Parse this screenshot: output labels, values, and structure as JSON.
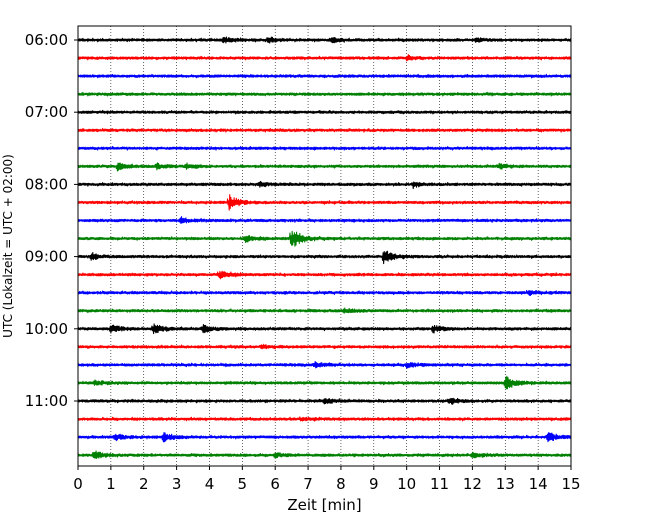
{
  "chart_data": {
    "type": "line",
    "chart_kind": "helicorder",
    "xlabel": "Zeit  [min]",
    "ylabel": "UTC (Lokalzeit = UTC + 02:00)",
    "xlim": [
      0,
      15
    ],
    "x_ticks": [
      "0",
      "1",
      "2",
      "3",
      "4",
      "5",
      "6",
      "7",
      "8",
      "9",
      "10",
      "11",
      "12",
      "13",
      "14",
      "15"
    ],
    "y_tick_labels": [
      "06:00",
      "07:00",
      "08:00",
      "09:00",
      "10:00",
      "11:00"
    ],
    "grid_x": "dotted-vertical",
    "trace_colors": [
      "#000000",
      "#ff0000",
      "#0000ff",
      "#008000"
    ],
    "traces": [
      {
        "start": "06:00",
        "color": "#000000",
        "events": [
          {
            "t": 4.4,
            "amp": 0.8
          },
          {
            "t": 5.8,
            "amp": 0.7
          },
          {
            "t": 7.7,
            "amp": 0.6
          },
          {
            "t": 12.1,
            "amp": 0.5
          }
        ]
      },
      {
        "start": "06:15",
        "color": "#ff0000",
        "events": [
          {
            "t": 10.0,
            "amp": 0.5
          }
        ]
      },
      {
        "start": "06:30",
        "color": "#0000ff",
        "events": []
      },
      {
        "start": "06:45",
        "color": "#008000",
        "events": []
      },
      {
        "start": "07:00",
        "color": "#000000",
        "events": []
      },
      {
        "start": "07:15",
        "color": "#ff0000",
        "events": []
      },
      {
        "start": "07:30",
        "color": "#0000ff",
        "events": []
      },
      {
        "start": "07:45",
        "color": "#008000",
        "events": [
          {
            "t": 1.2,
            "amp": 0.8
          },
          {
            "t": 2.4,
            "amp": 0.6
          },
          {
            "t": 3.3,
            "amp": 0.6
          },
          {
            "t": 12.8,
            "amp": 0.5
          }
        ]
      },
      {
        "start": "08:00",
        "color": "#000000",
        "events": [
          {
            "t": 5.5,
            "amp": 0.5
          },
          {
            "t": 10.2,
            "amp": 0.6
          }
        ]
      },
      {
        "start": "08:15",
        "color": "#ff0000",
        "events": [
          {
            "t": 4.6,
            "amp": 1.8
          }
        ]
      },
      {
        "start": "08:30",
        "color": "#0000ff",
        "events": [
          {
            "t": 3.1,
            "amp": 0.7
          }
        ]
      },
      {
        "start": "08:45",
        "color": "#008000",
        "events": [
          {
            "t": 5.1,
            "amp": 0.8
          },
          {
            "t": 6.5,
            "amp": 2.4
          }
        ]
      },
      {
        "start": "09:00",
        "color": "#000000",
        "events": [
          {
            "t": 0.4,
            "amp": 0.7
          },
          {
            "t": 9.3,
            "amp": 1.7
          }
        ]
      },
      {
        "start": "09:15",
        "color": "#ff0000",
        "events": [
          {
            "t": 4.3,
            "amp": 0.9
          }
        ]
      },
      {
        "start": "09:30",
        "color": "#0000ff",
        "events": [
          {
            "t": 13.7,
            "amp": 0.5
          }
        ]
      },
      {
        "start": "09:45",
        "color": "#008000",
        "events": [
          {
            "t": 8.1,
            "amp": 0.5
          }
        ]
      },
      {
        "start": "10:00",
        "color": "#000000",
        "events": [
          {
            "t": 1.0,
            "amp": 1.0
          },
          {
            "t": 2.3,
            "amp": 1.3
          },
          {
            "t": 3.8,
            "amp": 1.1
          },
          {
            "t": 10.8,
            "amp": 0.9
          }
        ]
      },
      {
        "start": "10:15",
        "color": "#ff0000",
        "events": [
          {
            "t": 5.6,
            "amp": 0.5
          }
        ]
      },
      {
        "start": "10:30",
        "color": "#0000ff",
        "events": [
          {
            "t": 7.2,
            "amp": 0.6
          },
          {
            "t": 10.0,
            "amp": 0.6
          }
        ]
      },
      {
        "start": "10:45",
        "color": "#008000",
        "events": [
          {
            "t": 0.5,
            "amp": 0.5
          },
          {
            "t": 13.0,
            "amp": 1.5
          }
        ]
      },
      {
        "start": "11:00",
        "color": "#000000",
        "events": [
          {
            "t": 7.5,
            "amp": 0.6
          },
          {
            "t": 11.3,
            "amp": 0.6
          }
        ]
      },
      {
        "start": "11:15",
        "color": "#ff0000",
        "events": [
          {
            "t": 6.8,
            "amp": 0.4
          }
        ]
      },
      {
        "start": "11:30",
        "color": "#0000ff",
        "events": [
          {
            "t": 1.1,
            "amp": 0.9
          },
          {
            "t": 2.6,
            "amp": 1.0
          },
          {
            "t": 14.3,
            "amp": 1.2
          }
        ]
      },
      {
        "start": "11:45",
        "color": "#008000",
        "events": [
          {
            "t": 0.5,
            "amp": 0.9
          },
          {
            "t": 6.0,
            "amp": 0.6
          },
          {
            "t": 12.0,
            "amp": 0.6
          }
        ]
      }
    ]
  }
}
